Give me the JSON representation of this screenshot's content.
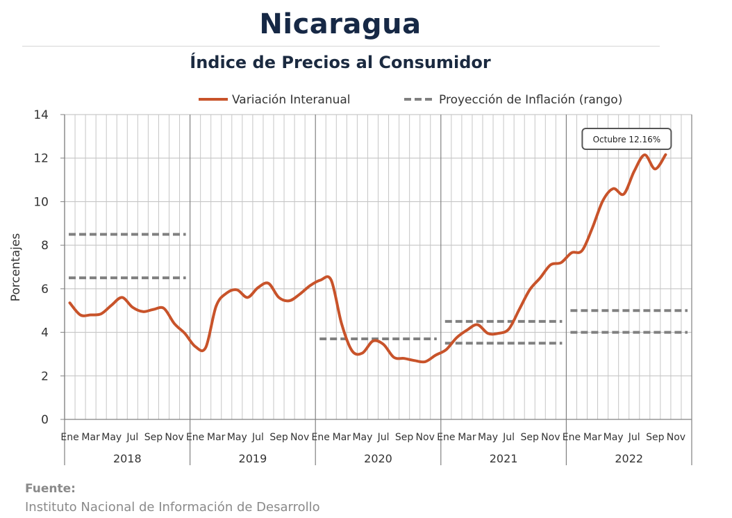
{
  "header": {
    "title": "Nicaragua",
    "subtitle": "Índice de Precios al Consumidor"
  },
  "source": {
    "label": "Fuente:",
    "text": "Instituto Nacional de Información de  Desarrollo"
  },
  "chart_data": {
    "type": "line",
    "ylabel": "Porcentajes",
    "ylim": [
      0,
      14
    ],
    "yticks": [
      0,
      2,
      4,
      6,
      8,
      10,
      12,
      14
    ],
    "grid": "vertical-monthly",
    "legend_position": "top",
    "month_labels": [
      "Ene",
      "",
      "Mar",
      "",
      "May",
      "",
      "Jul",
      "",
      "Sep",
      "",
      "Nov",
      ""
    ],
    "years": [
      "2018",
      "2019",
      "2020",
      "2021",
      "2022"
    ],
    "colors": {
      "series": "#c8532a",
      "projection": "#808080"
    },
    "series": [
      {
        "name": "Variación Interanual",
        "style": "solid",
        "values": [
          5.35,
          4.8,
          4.8,
          4.85,
          5.25,
          5.6,
          5.15,
          4.95,
          5.05,
          5.1,
          4.4,
          3.95,
          3.35,
          3.3,
          5.2,
          5.8,
          5.95,
          5.6,
          6.05,
          6.25,
          5.6,
          5.45,
          5.75,
          6.15,
          6.4,
          6.4,
          4.4,
          3.15,
          3.05,
          3.6,
          3.45,
          2.85,
          2.8,
          2.7,
          2.65,
          2.95,
          3.2,
          3.75,
          4.1,
          4.35,
          3.95,
          3.95,
          4.15,
          5.05,
          5.95,
          6.5,
          7.1,
          7.2,
          7.65,
          7.75,
          8.8,
          10.05,
          10.6,
          10.35,
          11.4,
          12.15,
          11.5,
          12.16
        ]
      },
      {
        "name": "Proyección de Inflación (rango)",
        "style": "dashed",
        "segments": [
          {
            "year": "2018",
            "low": 6.5,
            "high": 8.5
          },
          {
            "year": "2020",
            "low": 3.7,
            "high": 3.7
          },
          {
            "year": "2021",
            "low": 3.5,
            "high": 4.5
          },
          {
            "year": "2022",
            "low": 4.0,
            "high": 5.0
          }
        ]
      }
    ],
    "annotation": {
      "text": "Octubre 12.16%"
    }
  }
}
